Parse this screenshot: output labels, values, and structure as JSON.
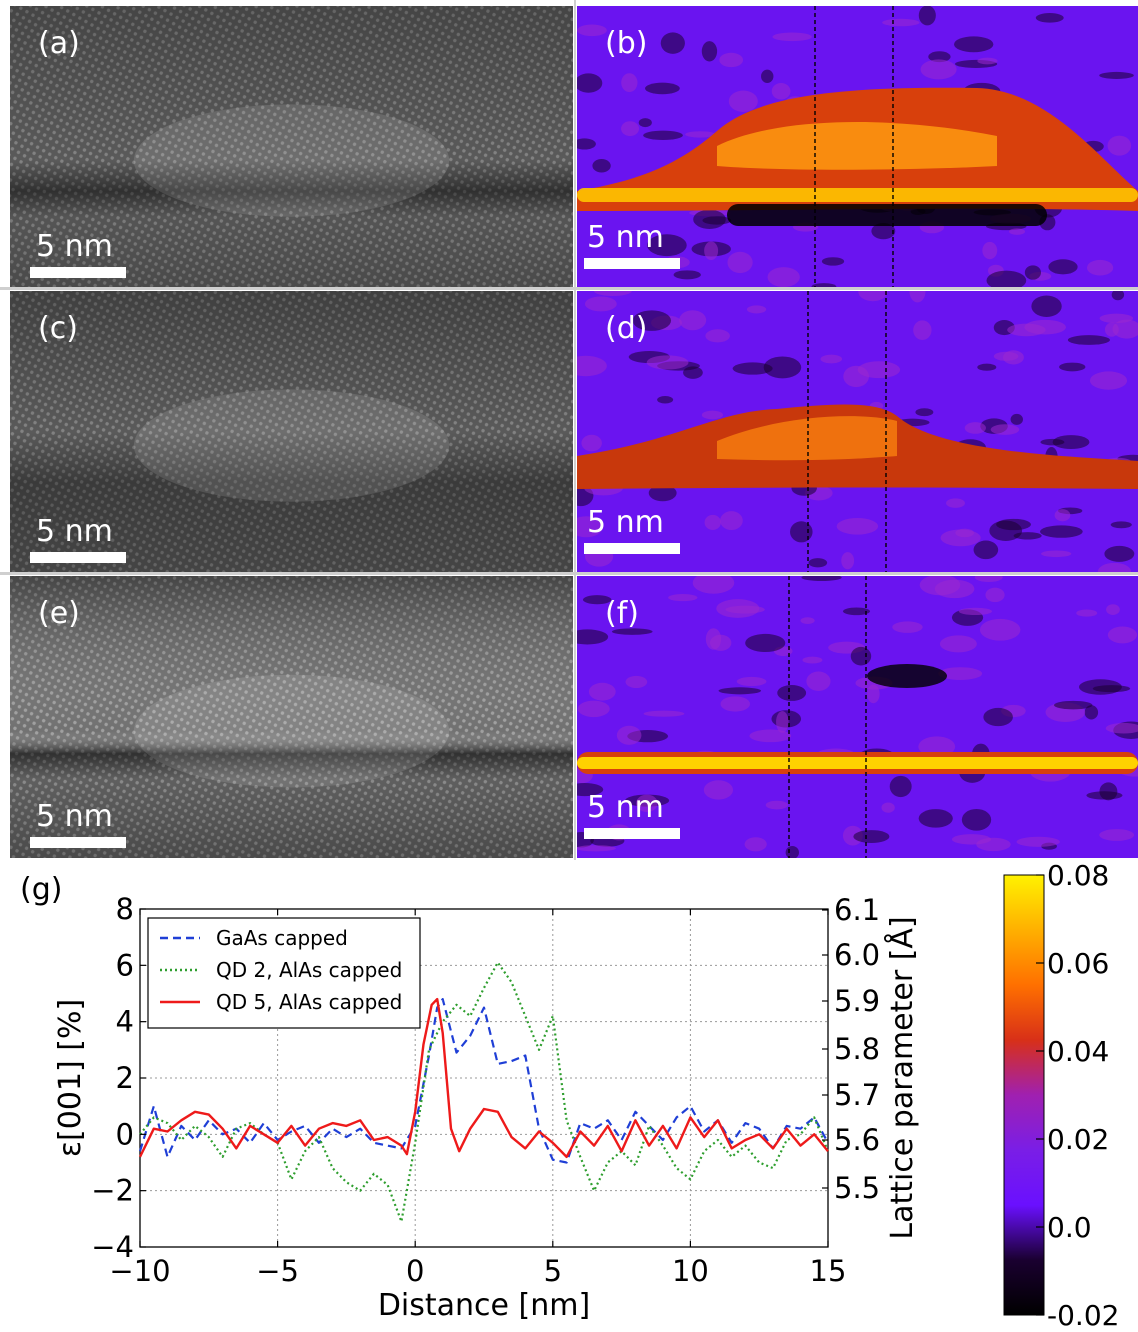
{
  "panels": [
    {
      "label": "(a)",
      "scale": "5 nm",
      "kind": "tem"
    },
    {
      "label": "(b)",
      "scale": "5 nm",
      "kind": "strain"
    },
    {
      "label": "(c)",
      "scale": "5 nm",
      "kind": "tem"
    },
    {
      "label": "(d)",
      "scale": "5 nm",
      "kind": "strain"
    },
    {
      "label": "(e)",
      "scale": "5 nm",
      "kind": "tem"
    },
    {
      "label": "(f)",
      "scale": "5 nm",
      "kind": "strain"
    }
  ],
  "colorbar": {
    "ticks": [
      "0.08",
      "0.06",
      "0.04",
      "0.02",
      "0.0",
      "-0.02"
    ],
    "colors": [
      "#fff200",
      "#ffb000",
      "#ff7000",
      "#d83018",
      "#a020b0",
      "#7a1ee6",
      "#6a10ff",
      "#1a0030",
      "#000000"
    ]
  },
  "chart_data": {
    "type": "line",
    "panel_label": "(g)",
    "xlabel": "Distance [nm]",
    "ylabel": "ε[001] [%]",
    "ylabel_right": "Lattice parameter [Å]",
    "xlim": [
      -10,
      15
    ],
    "ylim": [
      -4,
      8
    ],
    "xticks": [
      -10,
      -5,
      0,
      5,
      10,
      15
    ],
    "yticks": [
      -4,
      -2,
      0,
      2,
      4,
      6,
      8
    ],
    "right_ticks": [
      5.5,
      5.6,
      5.7,
      5.8,
      5.9,
      6.0,
      6.1
    ],
    "grid": true,
    "legend_position": "top-left",
    "series": [
      {
        "name": "GaAs capped",
        "color": "#1f3fd6",
        "style": "dashed",
        "x": [
          -10,
          -9.5,
          -9,
          -8.5,
          -8,
          -7.5,
          -7,
          -6.5,
          -6,
          -5.5,
          -5,
          -4.5,
          -4,
          -3.5,
          -3,
          -2.5,
          -2,
          -1.5,
          -1,
          -0.5,
          0,
          0.5,
          0.8,
          1,
          1.5,
          2,
          2.5,
          3,
          3.5,
          4,
          4.5,
          5,
          5.5,
          6,
          6.5,
          7,
          7.5,
          8,
          8.5,
          9,
          9.5,
          10,
          10.5,
          11,
          11.5,
          12,
          12.5,
          13,
          13.5,
          14,
          14.5,
          15
        ],
        "y": [
          -0.6,
          1.0,
          -0.8,
          0.3,
          -0.2,
          0.5,
          0.0,
          0.2,
          -0.3,
          0.4,
          -0.2,
          0.1,
          0.3,
          -0.3,
          0.2,
          -0.1,
          0.2,
          -0.3,
          -0.4,
          -0.5,
          0.3,
          2.8,
          4.5,
          4.8,
          2.9,
          3.5,
          4.5,
          2.5,
          2.6,
          2.8,
          0.2,
          -0.9,
          -1.0,
          0.4,
          0.2,
          0.5,
          -0.2,
          0.8,
          0.3,
          -0.2,
          0.6,
          1.0,
          0.1,
          0.5,
          -0.3,
          0.4,
          0.2,
          -0.5,
          0.3,
          0.2,
          0.6,
          -0.3
        ]
      },
      {
        "name": "QD 2, AlAs capped",
        "color": "#2e9e2e",
        "style": "dotted",
        "x": [
          -10,
          -9.5,
          -9,
          -8.5,
          -8,
          -7.5,
          -7,
          -6.5,
          -6,
          -5.5,
          -5,
          -4.5,
          -4,
          -3.5,
          -3,
          -2.5,
          -2,
          -1.5,
          -1,
          -0.5,
          0,
          0.5,
          1,
          1.5,
          2,
          2.5,
          3,
          3.5,
          4,
          4.5,
          5,
          5.5,
          6,
          6.5,
          7,
          7.5,
          8,
          8.5,
          9,
          9.5,
          10,
          10.5,
          11,
          11.5,
          12,
          12.5,
          13,
          13.5,
          14,
          14.5,
          15
        ],
        "y": [
          0.0,
          0.6,
          0.4,
          -0.2,
          0.3,
          -0.1,
          -0.8,
          0.2,
          0.4,
          0.0,
          -0.3,
          -1.6,
          -0.6,
          -0.1,
          -1.2,
          -1.7,
          -2.0,
          -1.4,
          -1.8,
          -3.1,
          -0.3,
          3.0,
          4.0,
          4.6,
          4.2,
          5.2,
          6.1,
          5.4,
          4.2,
          3.0,
          4.2,
          0.5,
          -0.8,
          -2.0,
          -1.0,
          -0.6,
          -1.1,
          0.3,
          -0.4,
          -1.2,
          -1.6,
          -0.6,
          -0.2,
          -0.8,
          -0.4,
          -1.0,
          -1.2,
          -0.2,
          0.0,
          0.6,
          -0.6
        ]
      },
      {
        "name": "QD 5, AlAs capped",
        "color": "#ee1a1a",
        "style": "solid",
        "x": [
          -10,
          -9.5,
          -9,
          -8.5,
          -8,
          -7.5,
          -7,
          -6.5,
          -6,
          -5.5,
          -5,
          -4.5,
          -4,
          -3.5,
          -3,
          -2.5,
          -2,
          -1.5,
          -1,
          -0.5,
          -0.3,
          0,
          0.3,
          0.6,
          0.8,
          1,
          1.3,
          1.6,
          2,
          2.5,
          3,
          3.5,
          4,
          4.5,
          5,
          5.5,
          6,
          6.5,
          7,
          7.5,
          8,
          8.5,
          9,
          9.5,
          10,
          10.5,
          11,
          11.5,
          12,
          12.5,
          13,
          13.5,
          14,
          14.5,
          15
        ],
        "y": [
          -0.8,
          0.2,
          0.1,
          0.5,
          0.8,
          0.7,
          0.2,
          -0.5,
          0.3,
          0.0,
          -0.3,
          0.3,
          -0.4,
          0.2,
          0.4,
          0.3,
          0.5,
          -0.2,
          -0.1,
          -0.4,
          -0.7,
          0.8,
          3.2,
          4.6,
          4.8,
          3.6,
          0.2,
          -0.6,
          0.2,
          0.9,
          0.8,
          -0.1,
          -0.5,
          0.1,
          -0.3,
          -0.8,
          0.1,
          -0.4,
          0.3,
          -0.6,
          0.5,
          -0.4,
          0.3,
          -0.5,
          0.6,
          -0.1,
          0.5,
          -0.5,
          -0.2,
          0.0,
          -0.5,
          0.2,
          -0.4,
          0.0,
          -0.6
        ]
      }
    ]
  }
}
